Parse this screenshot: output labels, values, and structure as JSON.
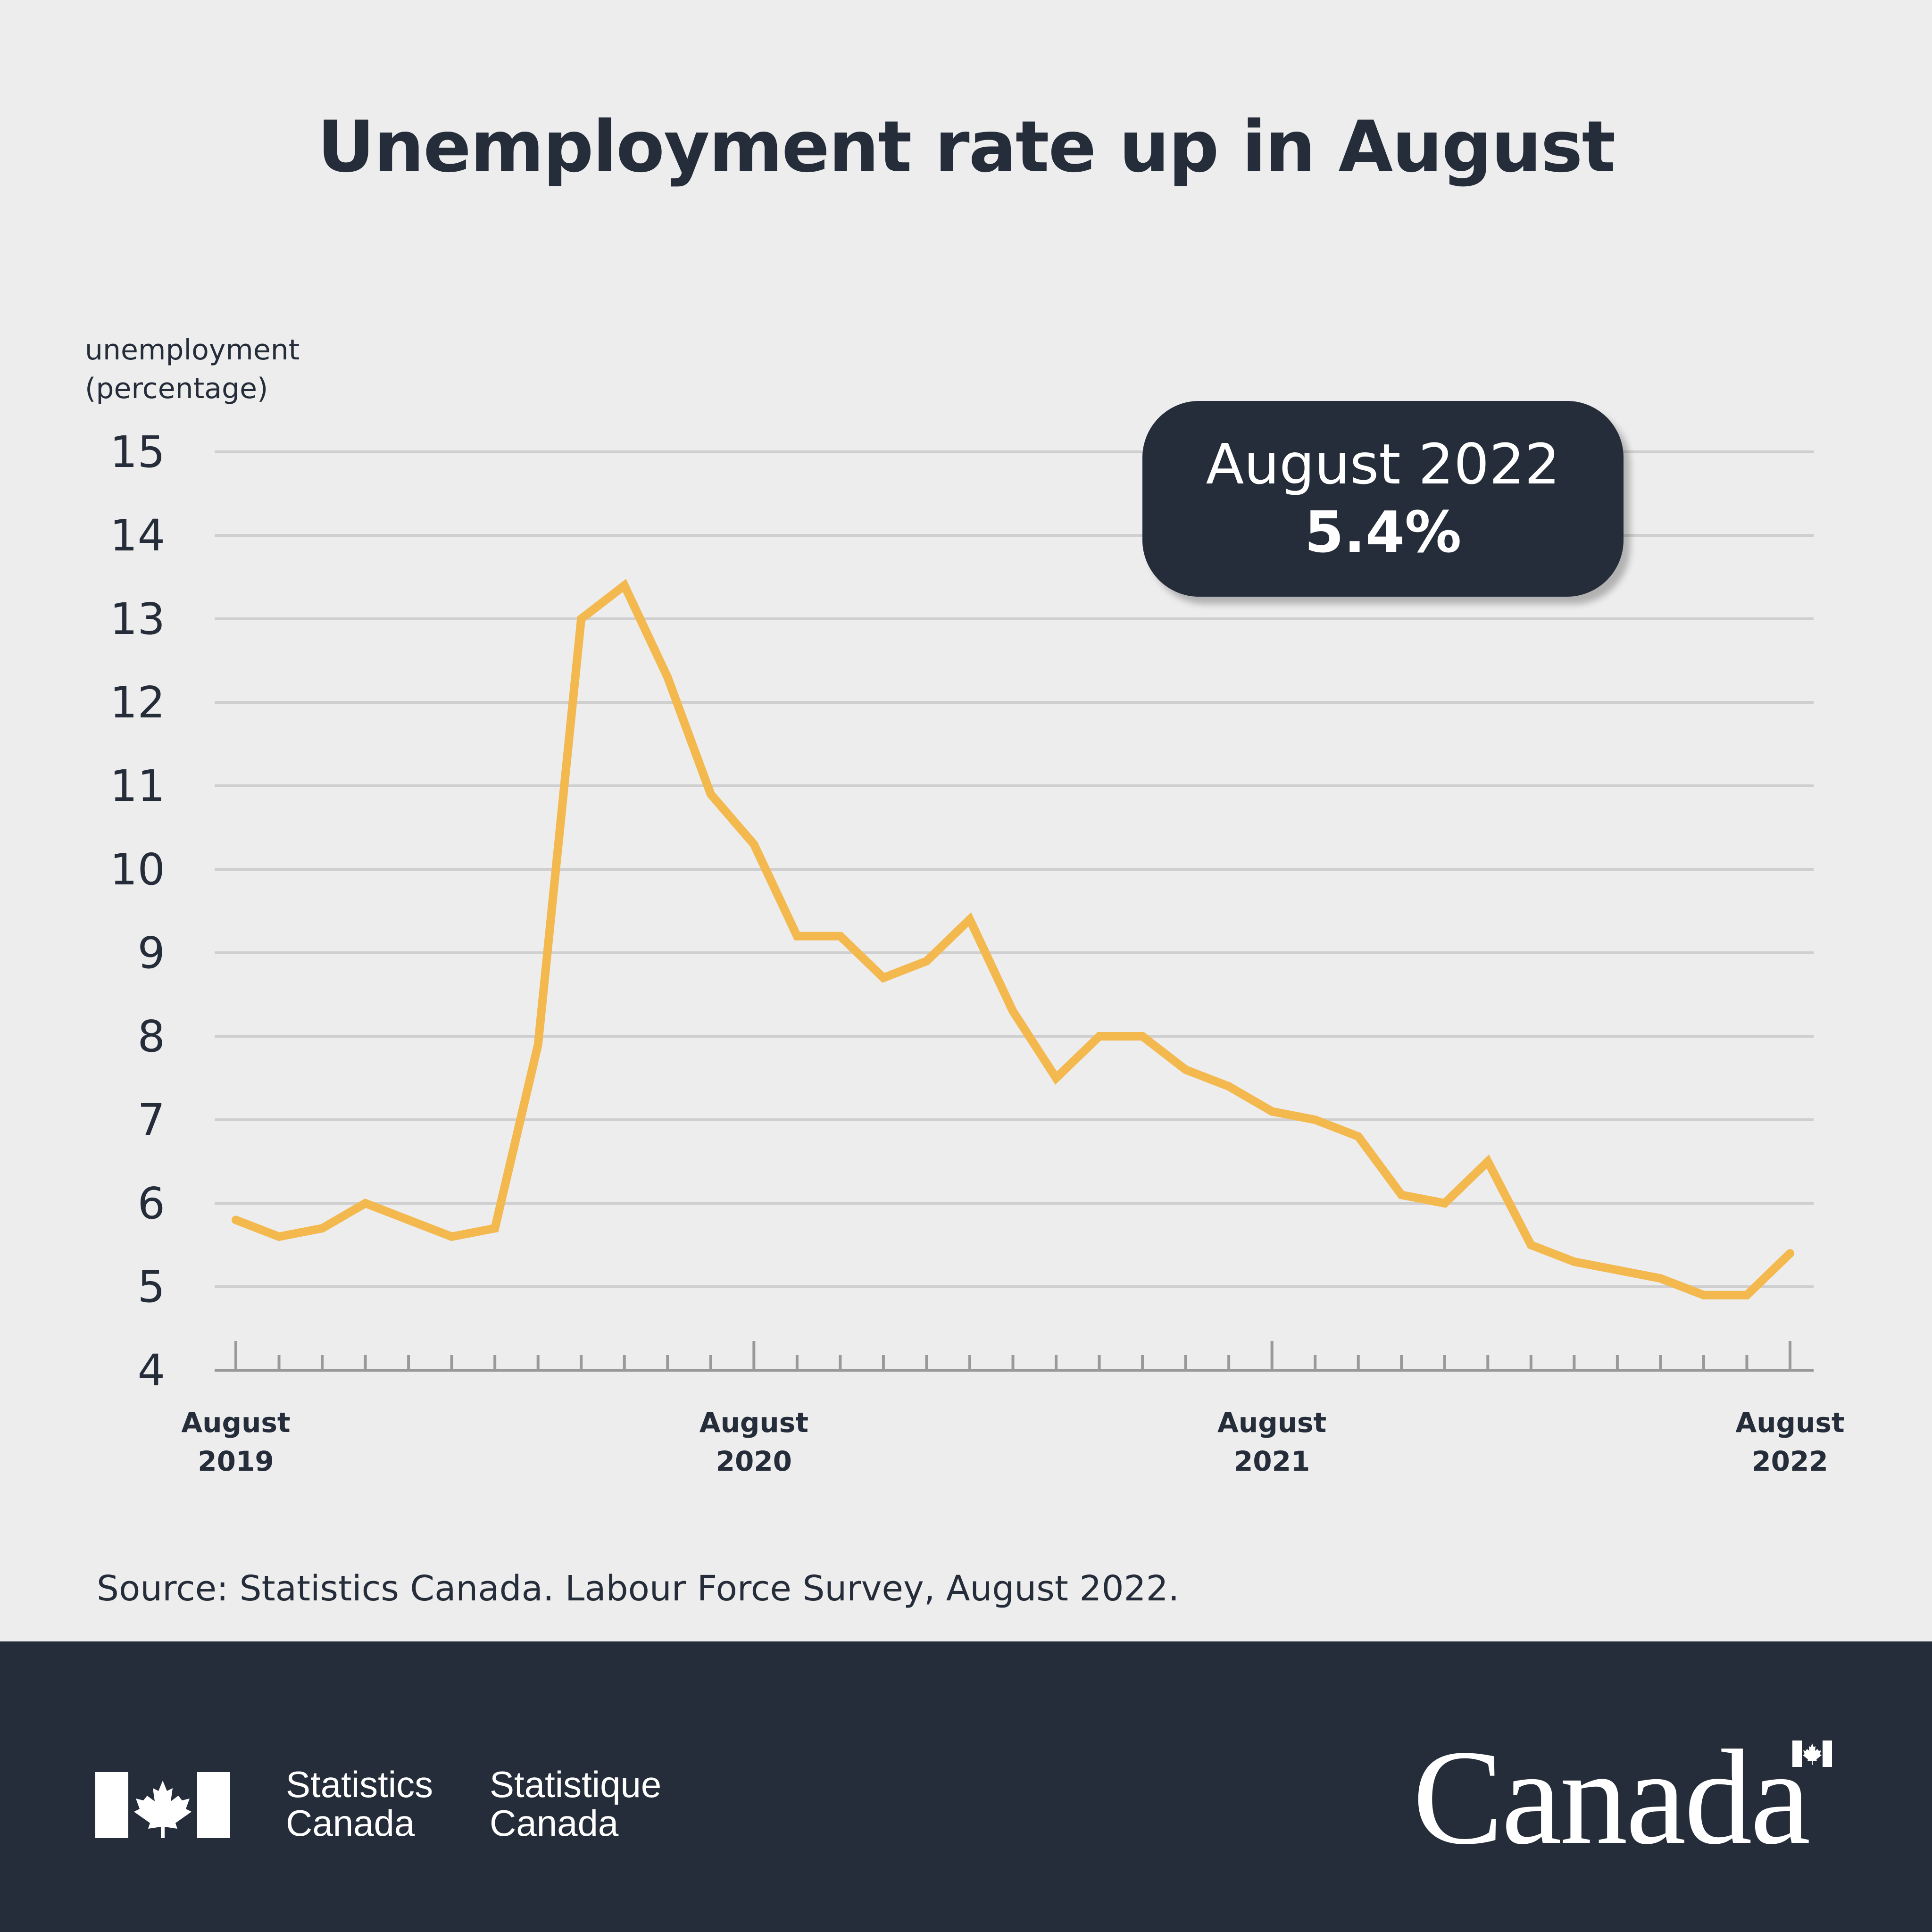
{
  "title": "Unemployment rate up in August",
  "callout": {
    "label": "August 2022",
    "value": "5.4%"
  },
  "source": "Source: Statistics Canada. Labour Force Survey, August 2022.",
  "footer": {
    "wordmark_en": [
      "Statistics",
      "Canada"
    ],
    "wordmark_fr": [
      "Statistique",
      "Canada"
    ],
    "canada_wordmark": "Canada"
  },
  "colors": {
    "line": "#f3b94e",
    "dark": "#262d3a",
    "grid": "#cfcfcf",
    "background": "#ededed"
  },
  "chart_data": {
    "type": "line",
    "title": "Unemployment rate up in August",
    "ylabel": [
      "unemployment",
      "(percentage)"
    ],
    "ylim": [
      4,
      15
    ],
    "yticks": [
      4,
      5,
      6,
      7,
      8,
      9,
      10,
      11,
      12,
      13,
      14,
      15
    ],
    "grid": true,
    "x_tick_labels": [
      {
        "month": "August",
        "year": "2019",
        "index": 0
      },
      {
        "month": "August",
        "year": "2020",
        "index": 12
      },
      {
        "month": "August",
        "year": "2021",
        "index": 24
      },
      {
        "month": "August",
        "year": "2022",
        "index": 36
      }
    ],
    "x": [
      "2019-08",
      "2019-09",
      "2019-10",
      "2019-11",
      "2019-12",
      "2020-01",
      "2020-02",
      "2020-03",
      "2020-04",
      "2020-05",
      "2020-06",
      "2020-07",
      "2020-08",
      "2020-09",
      "2020-10",
      "2020-11",
      "2020-12",
      "2021-01",
      "2021-02",
      "2021-03",
      "2021-04",
      "2021-05",
      "2021-06",
      "2021-07",
      "2021-08",
      "2021-09",
      "2021-10",
      "2021-11",
      "2021-12",
      "2022-01",
      "2022-02",
      "2022-03",
      "2022-04",
      "2022-05",
      "2022-06",
      "2022-07",
      "2022-08"
    ],
    "series": [
      {
        "values": [
          5.8,
          5.6,
          5.7,
          6.0,
          5.8,
          5.6,
          5.7,
          7.9,
          13.0,
          13.4,
          12.3,
          10.9,
          10.3,
          9.2,
          9.2,
          8.7,
          8.9,
          9.4,
          8.3,
          7.5,
          8.0,
          8.0,
          7.6,
          7.4,
          7.1,
          7.0,
          6.8,
          6.1,
          6.0,
          6.5,
          5.5,
          5.3,
          5.2,
          5.1,
          4.9,
          4.9,
          5.4
        ]
      }
    ]
  }
}
